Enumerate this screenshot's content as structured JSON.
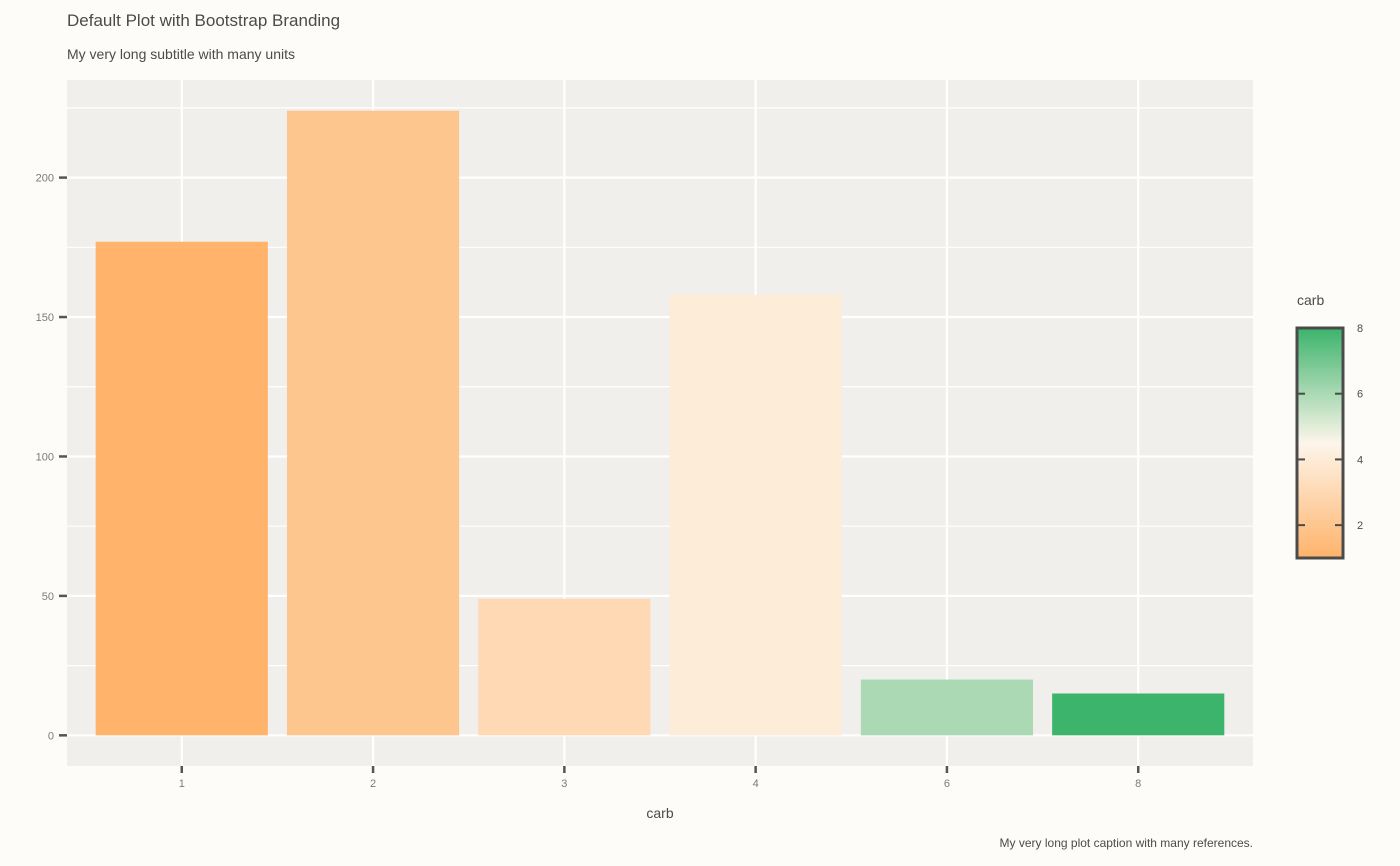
{
  "header": {
    "title": "Default Plot with Bootstrap Branding",
    "subtitle": "My very long subtitle with many units"
  },
  "footer": {
    "caption": "My very long plot caption with many references."
  },
  "colors": {
    "panel_bg": "#f0efec",
    "grid": "#ffffff",
    "low": "#ffb36b",
    "mid": "#fdf5ea",
    "high": "#3cb46c"
  },
  "chart_data": {
    "type": "bar",
    "title": "Default Plot with Bootstrap Branding",
    "subtitle": "My very long subtitle with many units",
    "caption": "My very long plot caption with many references.",
    "xlabel": "carb",
    "ylabel": "",
    "categories": [
      "1",
      "2",
      "3",
      "4",
      "6",
      "8"
    ],
    "values": [
      177,
      224,
      49,
      158,
      20,
      15
    ],
    "fill_by": [
      1,
      2,
      3,
      4,
      6,
      8
    ],
    "ylim": [
      -11,
      235
    ],
    "yticks": [
      0,
      50,
      100,
      150,
      200
    ],
    "grid": true,
    "legend": {
      "title": "carb",
      "position": "right",
      "range": [
        1,
        8
      ],
      "ticks": [
        2,
        4,
        6,
        8
      ]
    }
  }
}
